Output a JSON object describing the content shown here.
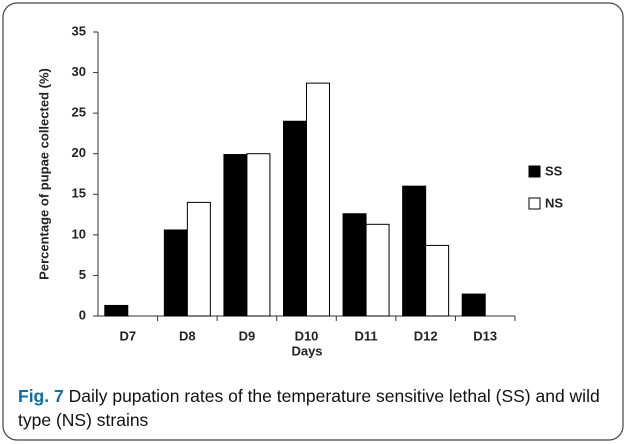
{
  "chart_data": {
    "type": "bar",
    "y_label": "Percentage of pupae collected (%)",
    "x_label": "Days",
    "categories": [
      "D7",
      "D8",
      "D9",
      "D10",
      "D11",
      "D12",
      "D13"
    ],
    "series": [
      {
        "name": "SS",
        "color": "#000000",
        "values": [
          1.3,
          10.6,
          19.9,
          24,
          12.6,
          16,
          2.7
        ]
      },
      {
        "name": "NS",
        "color": "#ffffff",
        "values": [
          0,
          14,
          20,
          28.7,
          11.3,
          8.7,
          0
        ]
      }
    ],
    "ylim": [
      0,
      35
    ],
    "yticks": [
      0,
      5,
      10,
      15,
      20,
      25,
      30,
      35
    ],
    "grid": false,
    "legend": "right",
    "caption_label": "Fig. 7",
    "caption": "Daily pupation rates of the temperature sensitive lethal (SS) and wild type (NS) strains"
  }
}
